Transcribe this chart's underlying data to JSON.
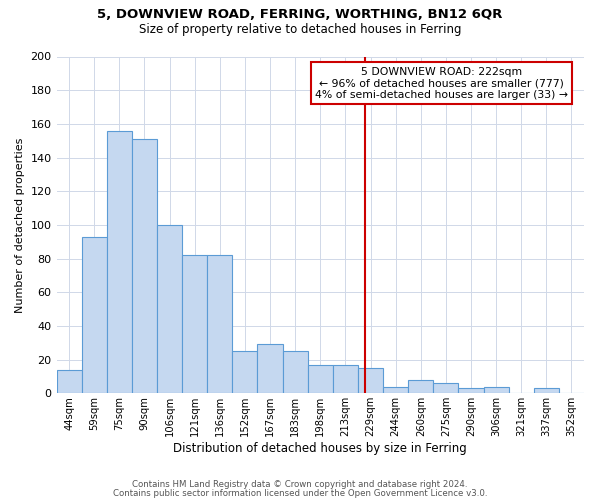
{
  "title1": "5, DOWNVIEW ROAD, FERRING, WORTHING, BN12 6QR",
  "title2": "Size of property relative to detached houses in Ferring",
  "xlabel": "Distribution of detached houses by size in Ferring",
  "ylabel": "Number of detached properties",
  "categories": [
    "44sqm",
    "59sqm",
    "75sqm",
    "90sqm",
    "106sqm",
    "121sqm",
    "136sqm",
    "152sqm",
    "167sqm",
    "183sqm",
    "198sqm",
    "213sqm",
    "229sqm",
    "244sqm",
    "260sqm",
    "275sqm",
    "290sqm",
    "306sqm",
    "321sqm",
    "337sqm",
    "352sqm"
  ],
  "values": [
    14,
    93,
    156,
    151,
    100,
    82,
    82,
    25,
    29,
    25,
    17,
    17,
    15,
    4,
    8,
    6,
    3,
    4,
    0,
    3,
    0
  ],
  "bar_color": "#c5d8f0",
  "bar_edge_color": "#5b9bd5",
  "bar_width": 1.0,
  "ylim": [
    0,
    200
  ],
  "yticks": [
    0,
    20,
    40,
    60,
    80,
    100,
    120,
    140,
    160,
    180,
    200
  ],
  "vline_x": 11.78,
  "vline_color": "#cc0000",
  "annotation_title": "5 DOWNVIEW ROAD: 222sqm",
  "annotation_line1": "← 96% of detached houses are smaller (777)",
  "annotation_line2": "4% of semi-detached houses are larger (33) →",
  "annotation_box_color": "#ffffff",
  "annotation_box_edge": "#cc0000",
  "footer1": "Contains HM Land Registry data © Crown copyright and database right 2024.",
  "footer2": "Contains public sector information licensed under the Open Government Licence v3.0.",
  "background_color": "#ffffff",
  "grid_color": "#d0d8e8"
}
